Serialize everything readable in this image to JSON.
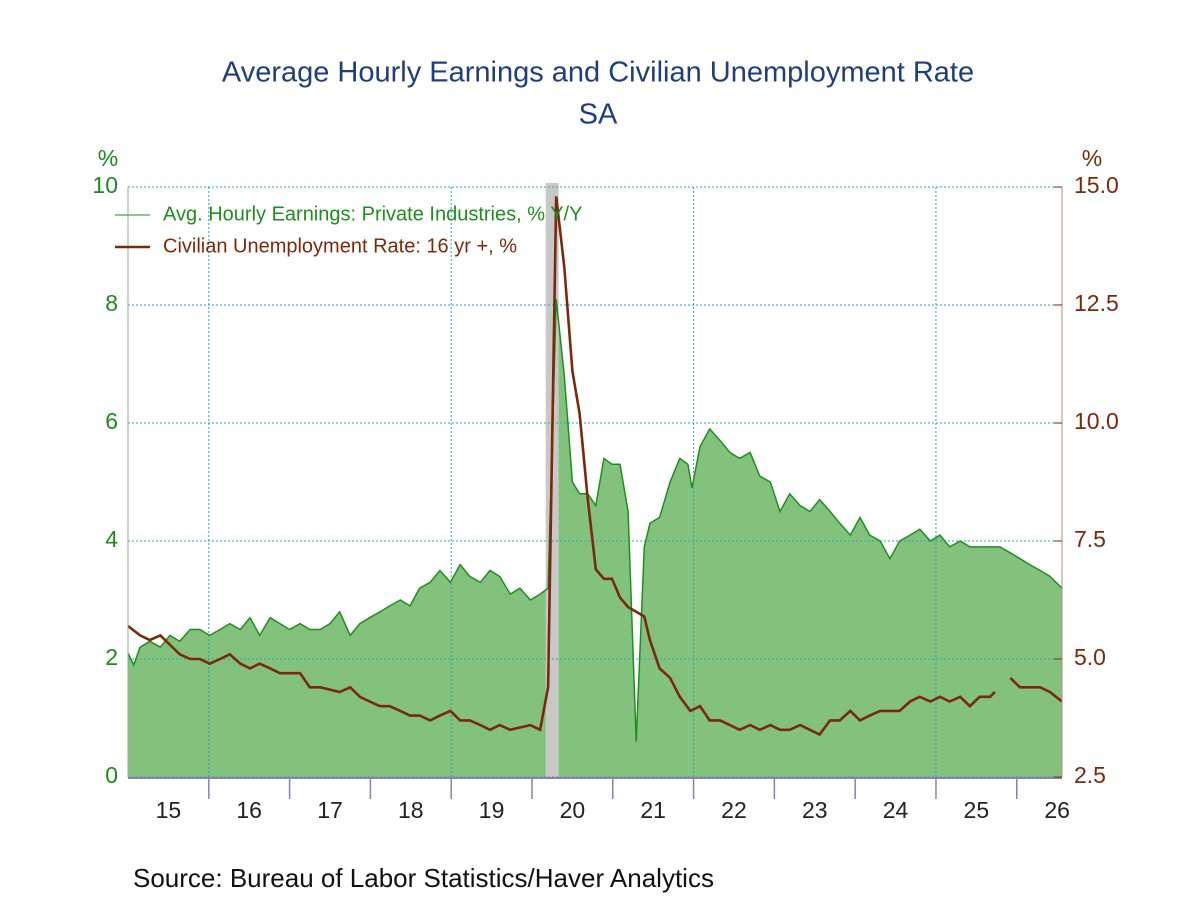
{
  "chart_data": {
    "type": "line",
    "title": "Average Hourly Earnings and Civilian Unemployment Rate",
    "subtitle": "SA",
    "y_label": "%",
    "y2_label": "%",
    "source": "Source:  Bureau of Labor Statistics/Haver Analytics",
    "xlim": [
      2015,
      2026.56
    ],
    "ylim": [
      0,
      10
    ],
    "y2lim": [
      2.5,
      15
    ],
    "yticks": [
      0,
      2,
      4,
      6,
      8,
      10
    ],
    "y2ticks": [
      2.5,
      {
        "value": 5,
        "label": "5.0"
      },
      7.5,
      {
        "value": 10,
        "label": "10.0"
      },
      12.5,
      {
        "value": 15,
        "label": "15.0"
      }
    ],
    "xticks": [
      {
        "value": 2015,
        "label": "15"
      },
      {
        "value": 2016,
        "label": "16"
      },
      {
        "value": 2017,
        "label": "17"
      },
      {
        "value": 2018,
        "label": "18"
      },
      {
        "value": 2019,
        "label": "19"
      },
      {
        "value": 2020,
        "label": "20"
      },
      {
        "value": 2021,
        "label": "21"
      },
      {
        "value": 2022,
        "label": "22"
      },
      {
        "value": 2023,
        "label": "23"
      },
      {
        "value": 2024,
        "label": "24"
      },
      {
        "value": 2025,
        "label": "25"
      },
      {
        "value": 2026,
        "label": "26"
      }
    ],
    "xgrid": [
      2016,
      2019,
      2022,
      2025
    ],
    "grid": true,
    "recession": [
      2020.17,
      2020.33
    ],
    "recession_color": "#c8c8c8",
    "series": [
      {
        "name": "Avg. Hourly Earnings: Private Industries, % Y/Y",
        "color": "#1e8f1e",
        "fill": "#82c27d",
        "axis": "y",
        "x": [
          2015.0,
          2015.07,
          2015.15,
          2015.27,
          2015.4,
          2015.52,
          2015.64,
          2015.77,
          2015.89,
          2016.01,
          2016.14,
          2016.26,
          2016.39,
          2016.51,
          2016.63,
          2016.76,
          2016.88,
          2017.0,
          2017.13,
          2017.25,
          2017.38,
          2017.5,
          2017.62,
          2017.75,
          2017.87,
          2017.99,
          2018.12,
          2018.24,
          2018.37,
          2018.49,
          2018.61,
          2018.74,
          2018.86,
          2018.99,
          2019.11,
          2019.23,
          2019.36,
          2019.48,
          2019.6,
          2019.73,
          2019.85,
          2019.98,
          2020.1,
          2020.2,
          2020.3,
          2020.4,
          2020.5,
          2020.59,
          2020.69,
          2020.79,
          2020.89,
          2020.99,
          2021.09,
          2021.19,
          2021.29,
          2021.39,
          2021.46,
          2021.58,
          2021.71,
          2021.83,
          2021.93,
          2021.98,
          2022.08,
          2022.2,
          2022.33,
          2022.45,
          2022.57,
          2022.7,
          2022.82,
          2022.95,
          2023.07,
          2023.19,
          2023.32,
          2023.44,
          2023.56,
          2023.69,
          2023.81,
          2023.94,
          2024.06,
          2024.18,
          2024.31,
          2024.43,
          2024.55,
          2024.68,
          2024.8,
          2024.93,
          2025.05,
          2025.17,
          2025.3,
          2025.42,
          2025.54,
          2025.67,
          2025.79,
          2025.92,
          2026.04,
          2026.16,
          2026.29,
          2026.41,
          2026.56
        ],
        "values": [
          2.1,
          1.9,
          2.2,
          2.3,
          2.2,
          2.4,
          2.3,
          2.5,
          2.5,
          2.4,
          2.5,
          2.6,
          2.5,
          2.7,
          2.4,
          2.7,
          2.6,
          2.5,
          2.6,
          2.5,
          2.5,
          2.6,
          2.8,
          2.4,
          2.6,
          2.7,
          2.8,
          2.9,
          3.0,
          2.9,
          3.2,
          3.3,
          3.5,
          3.3,
          3.6,
          3.4,
          3.3,
          3.5,
          3.4,
          3.1,
          3.2,
          3.0,
          3.1,
          3.2,
          8.1,
          6.8,
          5.0,
          4.8,
          4.8,
          4.6,
          5.4,
          5.3,
          5.3,
          4.5,
          0.6,
          3.9,
          4.3,
          4.4,
          5.0,
          5.4,
          5.3,
          4.9,
          5.6,
          5.9,
          5.7,
          5.5,
          5.4,
          5.5,
          5.1,
          5.0,
          4.5,
          4.8,
          4.6,
          4.5,
          4.7,
          4.5,
          4.3,
          4.1,
          4.4,
          4.1,
          4.0,
          3.7,
          4.0,
          4.1,
          4.2,
          4.0,
          4.1,
          3.9,
          4.0,
          3.9,
          3.9,
          3.9,
          3.9,
          3.8,
          3.7,
          3.6,
          3.5,
          3.4,
          3.2
        ]
      },
      {
        "name": "Civilian Unemployment Rate: 16 yr +, %",
        "color": "#7a2a0a",
        "axis": "y2",
        "x": [
          2015.0,
          2015.15,
          2015.27,
          2015.4,
          2015.52,
          2015.64,
          2015.77,
          2015.89,
          2016.01,
          2016.14,
          2016.26,
          2016.39,
          2016.51,
          2016.63,
          2016.76,
          2016.88,
          2017.13,
          2017.25,
          2017.38,
          2017.62,
          2017.75,
          2017.87,
          2017.99,
          2018.12,
          2018.24,
          2018.37,
          2018.49,
          2018.61,
          2018.74,
          2018.86,
          2018.99,
          2019.11,
          2019.23,
          2019.36,
          2019.48,
          2019.6,
          2019.73,
          2019.98,
          2020.1,
          2020.2,
          2020.3,
          2020.4,
          2020.5,
          2020.59,
          2020.69,
          2020.79,
          2020.89,
          2020.99,
          2021.09,
          2021.19,
          2021.29,
          2021.39,
          2021.46,
          2021.58,
          2021.71,
          2021.83,
          2021.96,
          2022.08,
          2022.2,
          2022.33,
          2022.45,
          2022.57,
          2022.7,
          2022.82,
          2022.95,
          2023.07,
          2023.19,
          2023.32,
          2023.44,
          2023.56,
          2023.69,
          2023.81,
          2023.94,
          2024.06,
          2024.18,
          2024.31,
          2024.55,
          2024.68,
          2024.8,
          2024.93,
          2025.05,
          2025.17,
          2025.3,
          2025.42,
          2025.54,
          2025.67,
          2025.73,
          2025.79,
          2025.92,
          2026.04,
          2026.16,
          2026.29,
          2026.41,
          2026.56
        ],
        "values": [
          5.7,
          5.5,
          5.4,
          5.5,
          5.3,
          5.1,
          5.0,
          5.0,
          4.9,
          5.0,
          5.1,
          4.9,
          4.8,
          4.9,
          4.8,
          4.7,
          4.7,
          4.4,
          4.4,
          4.3,
          4.4,
          4.2,
          4.1,
          4.0,
          4.0,
          3.9,
          3.8,
          3.8,
          3.7,
          3.8,
          3.9,
          3.7,
          3.7,
          3.6,
          3.5,
          3.6,
          3.5,
          3.6,
          3.5,
          4.4,
          14.8,
          13.3,
          11.1,
          10.2,
          8.4,
          6.9,
          6.7,
          6.7,
          6.3,
          6.1,
          6.0,
          5.9,
          5.4,
          4.8,
          4.6,
          4.2,
          3.9,
          4.0,
          3.7,
          3.7,
          3.6,
          3.5,
          3.6,
          3.5,
          3.6,
          3.5,
          3.5,
          3.6,
          3.5,
          3.4,
          3.7,
          3.7,
          3.9,
          3.7,
          3.8,
          3.9,
          3.9,
          4.1,
          4.2,
          4.1,
          4.2,
          4.1,
          4.2,
          4.0,
          4.2,
          4.2,
          4.3,
          null,
          4.6,
          4.4,
          4.4,
          4.4,
          4.3,
          4.1
        ]
      }
    ]
  }
}
